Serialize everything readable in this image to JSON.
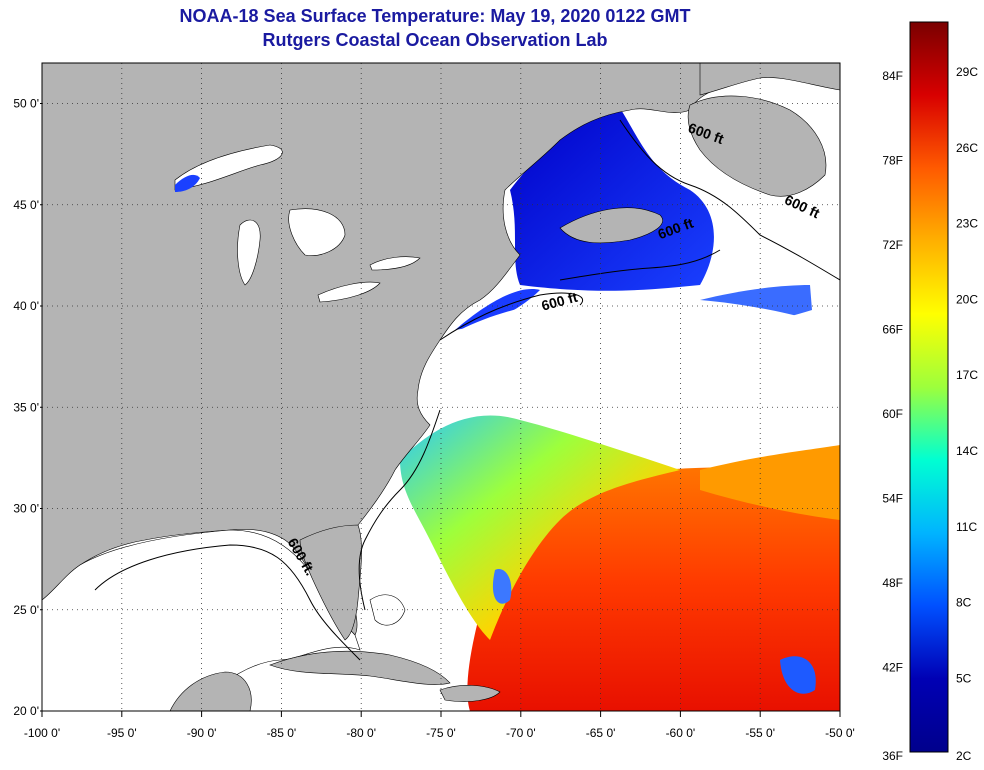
{
  "title_line1": "NOAA-18 Sea Surface Temperature:  May 19, 2020 0122 GMT",
  "title_line2": "Rutgers Coastal Ocean Observation Lab",
  "map": {
    "lon_range": [
      -100,
      -50
    ],
    "lat_range": [
      20,
      52
    ],
    "lat_ticks": [
      "50 0'",
      "45 0'",
      "40 0'",
      "35 0'",
      "30 0'",
      "25 0'",
      "20 0'"
    ],
    "lat_tick_values": [
      50,
      45,
      40,
      35,
      30,
      25,
      20
    ],
    "lon_ticks": [
      "-100 0'",
      "-95 0'",
      "-90 0'",
      "-85 0'",
      "-80 0'",
      "-75 0'",
      "-70 0'",
      "-65 0'",
      "-60 0'",
      "-55 0'",
      "-50 0'"
    ],
    "lon_tick_values": [
      -100,
      -95,
      -90,
      -85,
      -80,
      -75,
      -70,
      -65,
      -60,
      -55,
      -50
    ],
    "isobath_labels": [
      {
        "text": "600 ft",
        "lon": -58.5,
        "lat": 48.3
      },
      {
        "text": "600 ft",
        "lon": -52.5,
        "lat": 44.7
      },
      {
        "text": "600 ft",
        "lon": -60.2,
        "lat": 43.6
      },
      {
        "text": "600 ft",
        "lon": -67.5,
        "lat": 40.0
      },
      {
        "text": "600 ft.",
        "lon": -84.0,
        "lat": 27.5
      }
    ],
    "land_color": "#b4b4b4",
    "nodata_color": "#ffffff",
    "grid": true
  },
  "colorbar": {
    "fahrenheit_labels": [
      "84F",
      "78F",
      "72F",
      "66F",
      "60F",
      "54F",
      "48F",
      "42F",
      "36F"
    ],
    "celsius_labels": [
      "29C",
      "26C",
      "23C",
      "20C",
      "17C",
      "14C",
      "11C",
      "8C",
      "5C",
      "2C"
    ],
    "stops": [
      "#7a0000",
      "#d80000",
      "#ff5a00",
      "#ffb000",
      "#ffff00",
      "#9dff3c",
      "#00ffd2",
      "#00b4ff",
      "#0050ff",
      "#0000b4",
      "#00008c"
    ]
  }
}
